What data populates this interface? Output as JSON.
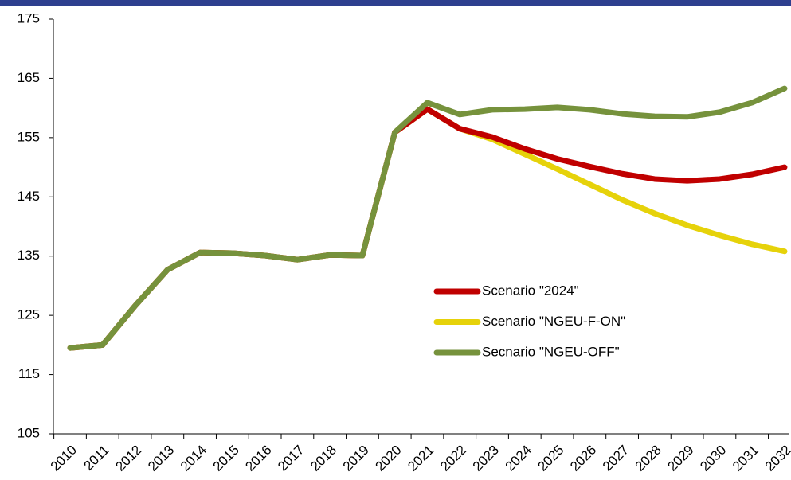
{
  "chart_data": {
    "type": "line",
    "categories": [
      "2010",
      "2011",
      "2012",
      "2013",
      "2014",
      "2015",
      "2016",
      "2017",
      "2018",
      "2019",
      "2020",
      "2021",
      "2022",
      "2023",
      "2024",
      "2025",
      "2026",
      "2027",
      "2028",
      "2029",
      "2030",
      "2031",
      "2032"
    ],
    "series": [
      {
        "name": "Scenario \"2024\"",
        "color": "#c00000",
        "values": [
          119.5,
          120.0,
          126.6,
          132.7,
          135.6,
          135.5,
          135.1,
          134.4,
          135.2,
          135.1,
          155.9,
          159.8,
          156.5,
          155.1,
          153.1,
          151.4,
          150.1,
          148.9,
          148.0,
          147.7,
          148.0,
          148.8,
          150.0
        ]
      },
      {
        "name": "Scenario \"NGEU-F-ON\"",
        "color": "#e6d20a",
        "values": [
          119.5,
          120.0,
          126.6,
          132.7,
          135.6,
          135.5,
          135.1,
          134.4,
          135.2,
          135.1,
          155.9,
          159.8,
          156.5,
          154.7,
          152.2,
          149.7,
          147.1,
          144.5,
          142.2,
          140.2,
          138.5,
          137.0,
          135.8
        ]
      },
      {
        "name": "Secnario \"NGEU-OFF\"",
        "color": "#76923c",
        "values": [
          119.5,
          120.0,
          126.6,
          132.7,
          135.6,
          135.5,
          135.1,
          134.4,
          135.2,
          135.1,
          155.9,
          160.9,
          158.9,
          159.7,
          159.8,
          160.1,
          159.7,
          159.0,
          158.6,
          158.5,
          159.3,
          160.9,
          163.3
        ]
      }
    ],
    "ylim": [
      105,
      175
    ],
    "yticks": [
      105,
      115,
      125,
      135,
      145,
      155,
      165,
      175
    ]
  }
}
